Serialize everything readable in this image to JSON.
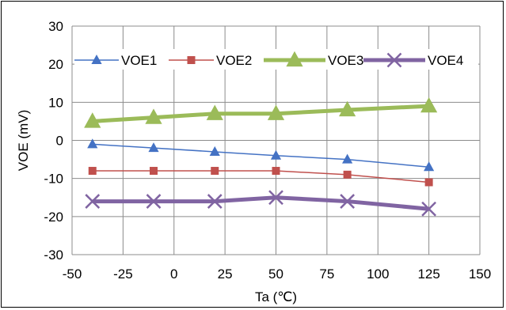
{
  "chart_data": {
    "type": "line",
    "title": "",
    "xlabel": "Ta (℃)",
    "ylabel": "VOE (mV)",
    "xlim": [
      -50,
      150
    ],
    "ylim": [
      -30,
      30
    ],
    "x_ticks": [
      -50,
      -25,
      0,
      25,
      50,
      75,
      100,
      125,
      150
    ],
    "y_ticks": [
      -30,
      -20,
      -10,
      0,
      10,
      20,
      30
    ],
    "x_tick_labels": [
      "-50",
      "-25",
      "0",
      "25",
      "50",
      "75",
      "100",
      "125",
      "150"
    ],
    "y_tick_labels": [
      "-30",
      "-20",
      "-10",
      "0",
      "10",
      "20",
      "30"
    ],
    "grid": true,
    "legend_position": "top",
    "x": [
      -40,
      -10,
      20,
      50,
      85,
      125
    ],
    "series": [
      {
        "name": "VOE1",
        "values": [
          -1,
          -2,
          -3,
          -4,
          -5,
          -7
        ],
        "color": "#4472C4",
        "marker": "triangle",
        "line": "thin"
      },
      {
        "name": "VOE2",
        "values": [
          -8,
          -8,
          -8,
          -8,
          -9,
          -11
        ],
        "color": "#C0504D",
        "marker": "square",
        "line": "thin"
      },
      {
        "name": "VOE3",
        "values": [
          5,
          6,
          7,
          7,
          8,
          9
        ],
        "color": "#9BBB59",
        "marker": "triangle",
        "line": "thick"
      },
      {
        "name": "VOE4",
        "values": [
          -16,
          -16,
          -16,
          -15,
          -16,
          -18
        ],
        "color": "#8064A2",
        "marker": "cross",
        "line": "thick"
      }
    ]
  }
}
